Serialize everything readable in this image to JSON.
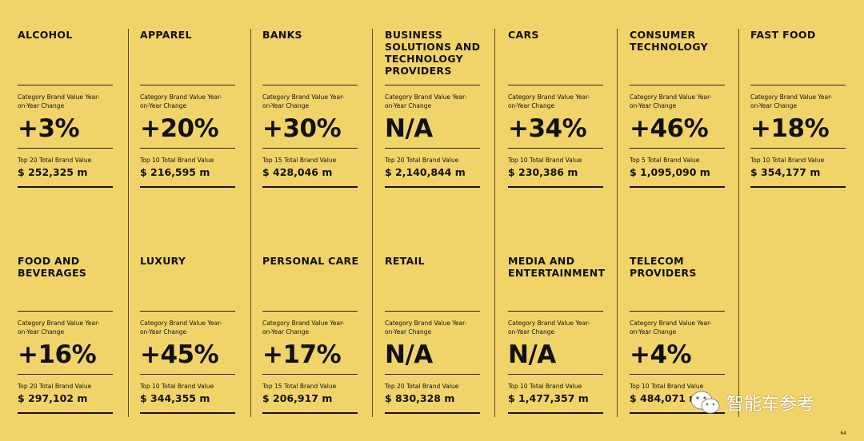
{
  "cards": [
    {
      "title": "ALCOHOL",
      "change_label": "Category Brand Value Year-on-Year Change",
      "change": "+3%",
      "total_label": "Top 20 Total Brand Value",
      "total": "$ 252,325 m"
    },
    {
      "title": "APPAREL",
      "change_label": "Category Brand Value Year-on-Year Change",
      "change": "+20%",
      "total_label": "Top 10 Total Brand Value",
      "total": "$ 216,595 m"
    },
    {
      "title": "BANKS",
      "change_label": "Category Brand Value Year-on-Year Change",
      "change": "+30%",
      "total_label": "Top 15 Total Brand Value",
      "total": "$ 428,046 m"
    },
    {
      "title": "BUSINESS SOLUTIONS AND TECHNOLOGY PROVIDERS",
      "change_label": "Category Brand Value Year-on-Year Change",
      "change": "N/A",
      "total_label": "Top 20 Total Brand Value",
      "total": "$ 2,140,844 m"
    },
    {
      "title": "CARS",
      "change_label": "Category Brand Value Year-on-Year Change",
      "change": "+34%",
      "total_label": "Top 10 Total Brand Value",
      "total": "$ 230,386 m"
    },
    {
      "title": "CONSUMER TECHNOLOGY",
      "change_label": "Category Brand Value Year-on-Year Change",
      "change": "+46%",
      "total_label": "Top 5 Total Brand Value",
      "total": "$ 1,095,090 m"
    },
    {
      "title": "FAST FOOD",
      "change_label": "Category Brand Value Year-on-Year Change",
      "change": "+18%",
      "total_label": "Top 10 Total Brand Value",
      "total": "$ 354,177 m"
    },
    {
      "title": "FOOD AND BEVERAGES",
      "change_label": "Category Brand Value Year-on-Year Change",
      "change": "+16%",
      "total_label": "Top 20 Total Brand Value",
      "total": "$ 297,102 m"
    },
    {
      "title": "LUXURY",
      "change_label": "Category Brand Value Year-on-Year Change",
      "change": "+45%",
      "total_label": "Top 10 Total Brand Value",
      "total": "$ 344,355 m"
    },
    {
      "title": "PERSONAL CARE",
      "change_label": "Category Brand Value Year-on-Year Change",
      "change": "+17%",
      "total_label": "Top 15 Total Brand Value",
      "total": "$ 206,917 m"
    },
    {
      "title": "RETAIL",
      "change_label": "Category Brand Value Year-on-Year Change",
      "change": "N/A",
      "total_label": "Top 20 Total Brand Value",
      "total": "$ 830,328 m"
    },
    {
      "title": "MEDIA AND ENTERTAINMENT",
      "change_label": "Category Brand Value Year-on-Year Change",
      "change": "N/A",
      "total_label": "Top 10 Total Brand Value",
      "total": "$ 1,477,357 m"
    },
    {
      "title": "TELECOM PROVIDERS",
      "change_label": "Category Brand Value Year-on-Year Change",
      "change": "+4%",
      "total_label": "Top 10 Total Brand Value",
      "total": "$ 484,071 m"
    }
  ],
  "page_number": "64",
  "watermark": "智能车参考"
}
